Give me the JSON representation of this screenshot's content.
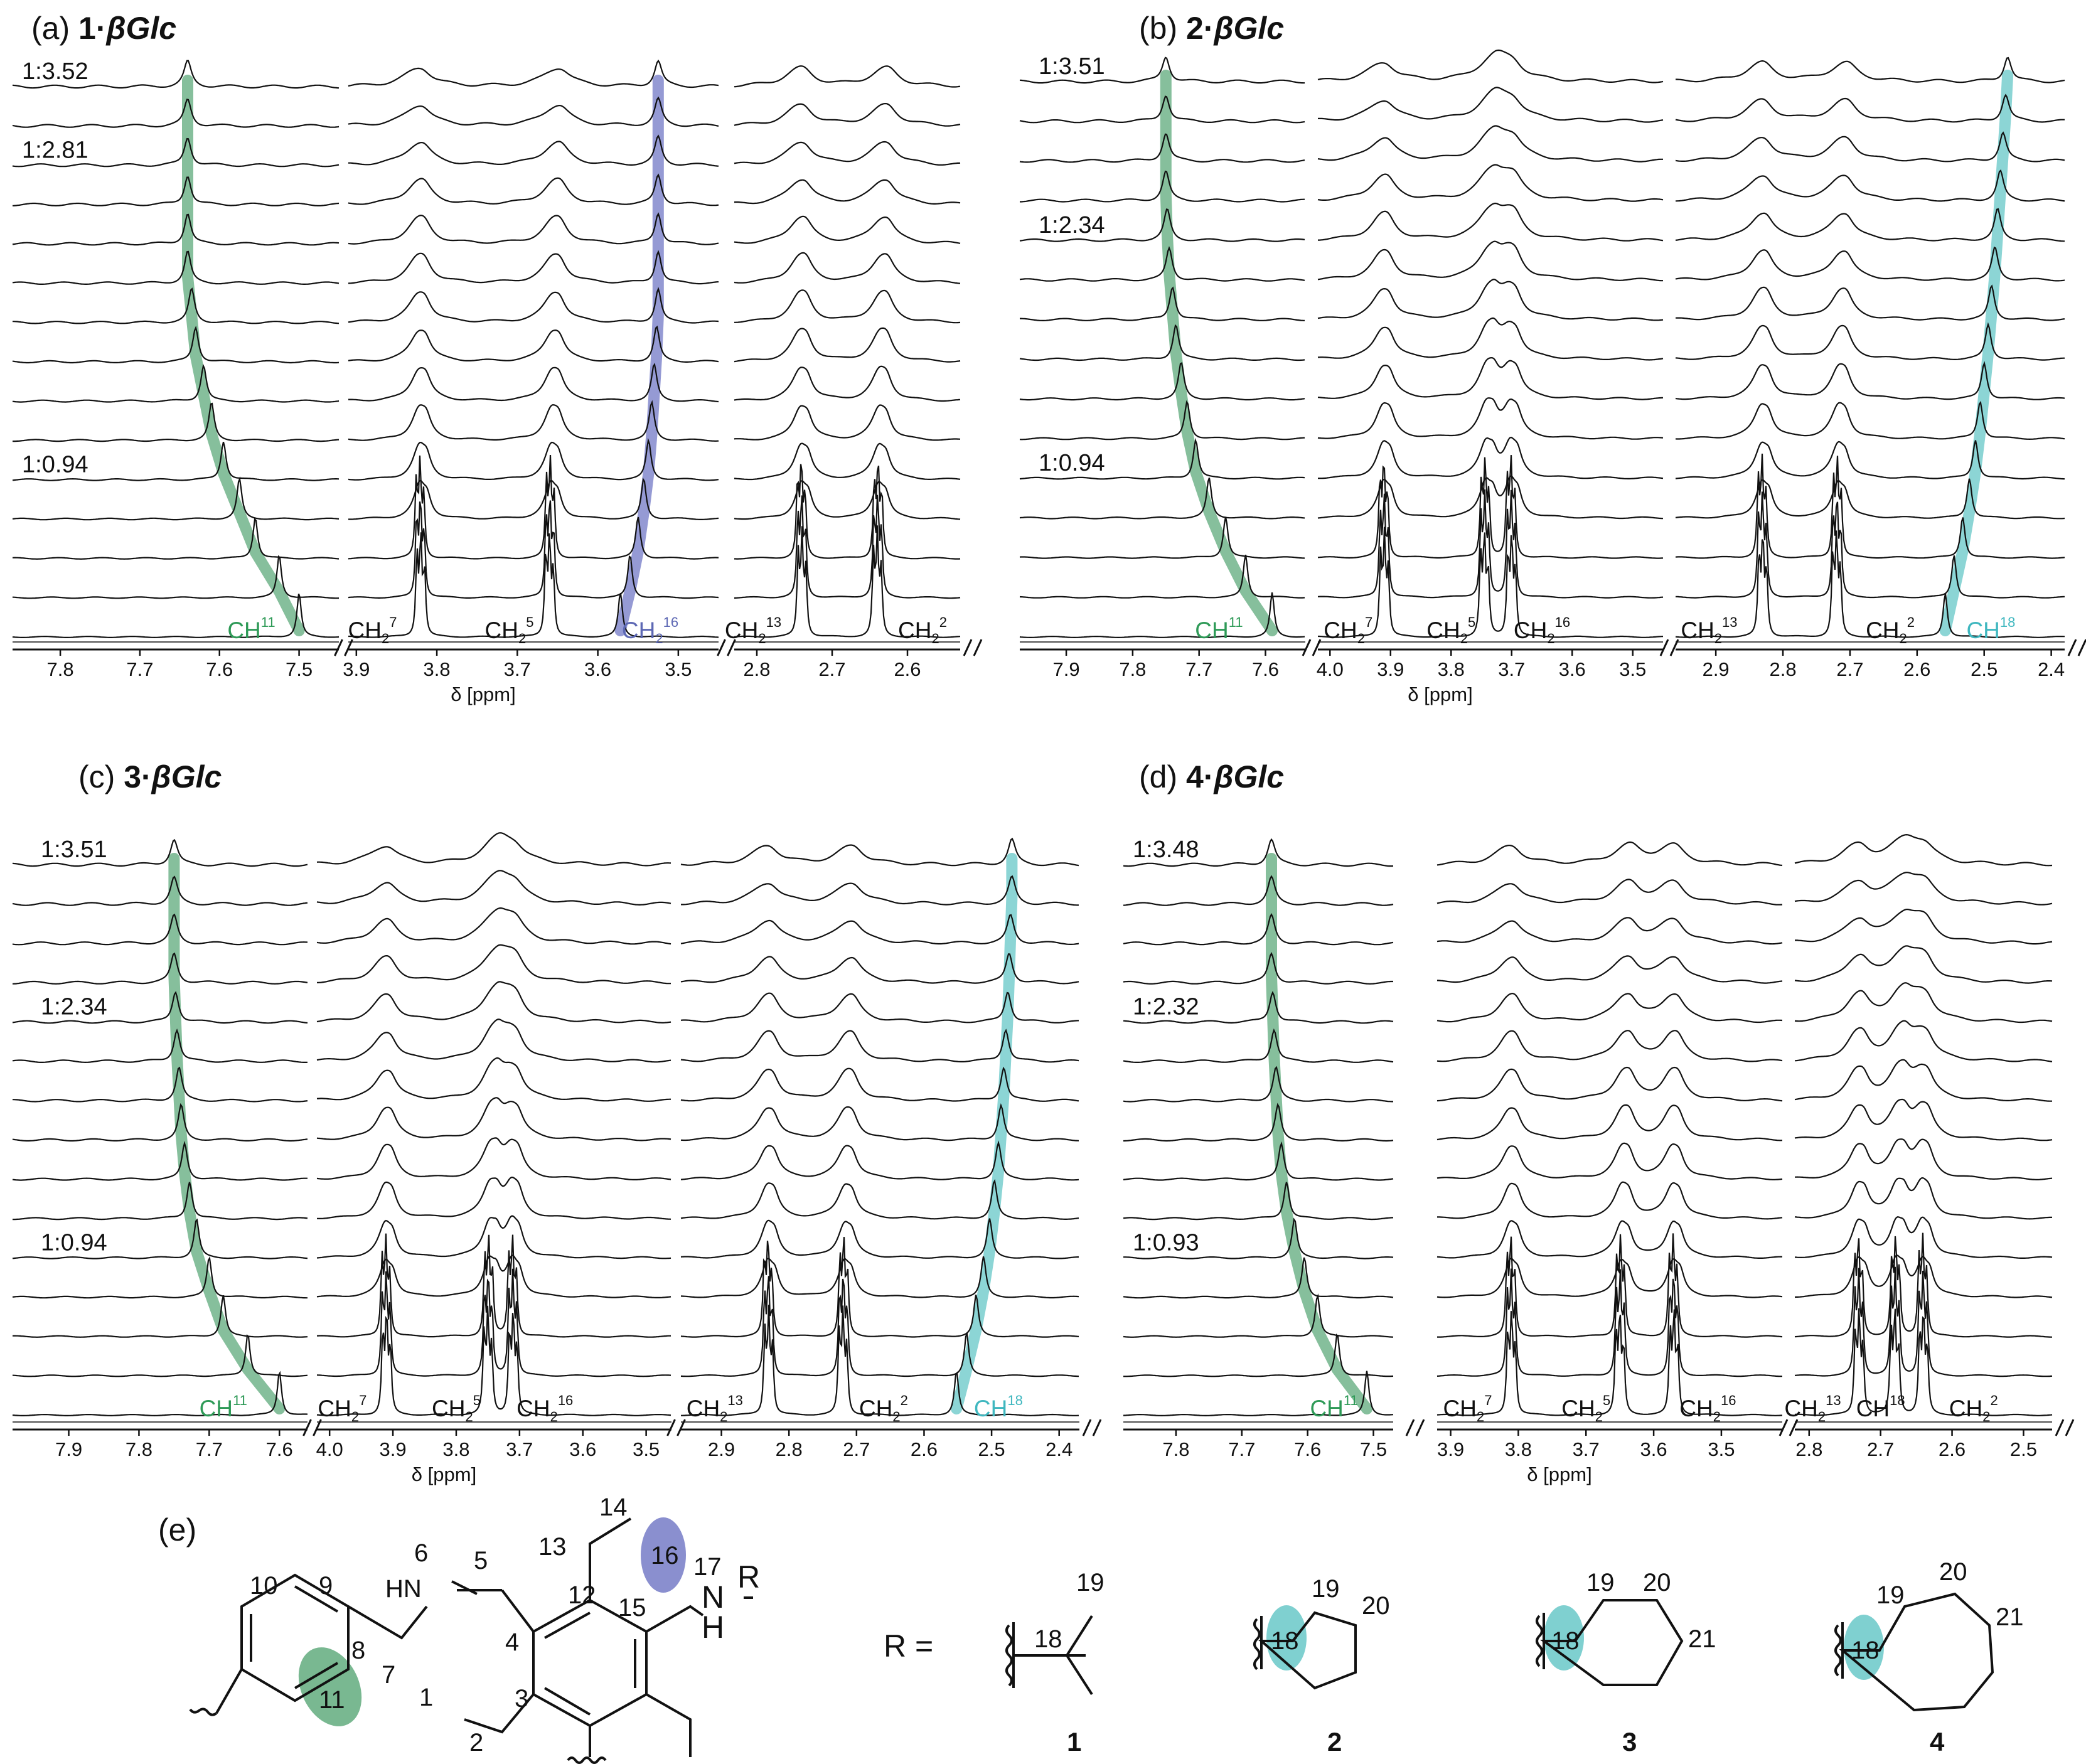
{
  "colors": {
    "spectrum": "#111111",
    "highlight_ch11": "#79b891",
    "highlight_ch16": "#8a8fcf",
    "highlight_ch18": "#7fd0d0",
    "label_ch11": "#2e9a57",
    "label_ch16": "#5d68b4",
    "label_ch18": "#3fb7bf"
  },
  "chart_data": [
    {
      "type": "line",
      "panel": "(a)",
      "title_prefix": "(a) ",
      "title_compound": "1",
      "title_dot": "·",
      "title_guest": "βGlc",
      "xlabel": "δ [ppm]",
      "n_traces": 15,
      "ratio_labels": [
        {
          "text": "1:3.52",
          "trace": 0
        },
        {
          "text": "1:2.81",
          "trace": 2
        },
        {
          "text": "1:0.94",
          "trace": 10
        }
      ],
      "segments": [
        {
          "xlim": [
            7.86,
            7.45
          ],
          "ticks": [
            "7.8",
            "7.7",
            "7.6",
            "7.5"
          ],
          "tick_values": [
            7.8,
            7.7,
            7.6,
            7.5
          ]
        },
        {
          "xlim": [
            3.91,
            3.45
          ],
          "ticks": [
            "3.9",
            "3.8",
            "3.7",
            "3.6",
            "3.5"
          ],
          "tick_values": [
            3.9,
            3.8,
            3.7,
            3.6,
            3.5
          ]
        },
        {
          "xlim": [
            2.83,
            2.53
          ],
          "ticks": [
            "2.8",
            "2.7",
            "2.6"
          ],
          "tick_values": [
            2.8,
            2.7,
            2.6
          ]
        }
      ],
      "highlights": [
        {
          "label": "CH",
          "sup": "11",
          "series": "ch11",
          "segment": 0,
          "shifts_ppm": [
            7.64,
            7.64,
            7.64,
            7.64,
            7.64,
            7.64,
            7.635,
            7.63,
            7.62,
            7.61,
            7.595,
            7.575,
            7.555,
            7.525,
            7.5
          ]
        },
        {
          "label": "CH",
          "sub": "2",
          "sup": "16",
          "series": "ch16",
          "segment": 1,
          "shifts_ppm": [
            3.525,
            3.525,
            3.525,
            3.525,
            3.525,
            3.525,
            3.525,
            3.527,
            3.53,
            3.533,
            3.537,
            3.543,
            3.55,
            3.56,
            3.572
          ]
        }
      ],
      "static_peaks": [
        {
          "label": "CH",
          "sub": "2",
          "sup": "7",
          "segment": 1,
          "ppm": 3.82
        },
        {
          "label": "CH",
          "sub": "2",
          "sup": "5",
          "segment": 1,
          "ppm": 3.66
        },
        {
          "label": "CH",
          "sub": "2",
          "sup": "13",
          "segment": 2,
          "ppm": 2.74
        },
        {
          "label": "CH",
          "sub": "2",
          "sup": "2",
          "segment": 2,
          "ppm": 2.64
        }
      ],
      "peak_labels": [
        {
          "text": "CH",
          "sub": "",
          "sup": "11",
          "series": "ch11",
          "segment": 0,
          "ppm": 7.56
        },
        {
          "text": "CH",
          "sub": "2",
          "sup": "7",
          "segment": 1,
          "ppm": 3.88
        },
        {
          "text": "CH",
          "sub": "2",
          "sup": "5",
          "segment": 1,
          "ppm": 3.71
        },
        {
          "text": "CH",
          "sub": "2",
          "sup": "16",
          "series": "ch16",
          "segment": 1,
          "ppm": 3.535
        },
        {
          "text": "CH",
          "sub": "2",
          "sup": "13",
          "segment": 2,
          "ppm": 2.805
        },
        {
          "text": "CH",
          "sub": "2",
          "sup": "2",
          "segment": 2,
          "ppm": 2.58
        }
      ]
    },
    {
      "type": "line",
      "panel": "(b)",
      "title_prefix": "(b) ",
      "title_compound": "2",
      "title_dot": "·",
      "title_guest": "βGlc",
      "xlabel": "δ [ppm]",
      "n_traces": 15,
      "ratio_labels": [
        {
          "text": "1:3.51",
          "trace": 0
        },
        {
          "text": "1:2.34",
          "trace": 4
        },
        {
          "text": "1:0.94",
          "trace": 10
        }
      ],
      "segments": [
        {
          "xlim": [
            7.97,
            7.54
          ],
          "ticks": [
            "7.9",
            "7.8",
            "7.7",
            "7.6"
          ],
          "tick_values": [
            7.9,
            7.8,
            7.7,
            7.6
          ]
        },
        {
          "xlim": [
            4.02,
            3.45
          ],
          "ticks": [
            "4.0",
            "3.9",
            "3.8",
            "3.7",
            "3.6",
            "3.5"
          ],
          "tick_values": [
            4.0,
            3.9,
            3.8,
            3.7,
            3.6,
            3.5
          ]
        },
        {
          "xlim": [
            2.96,
            2.38
          ],
          "ticks": [
            "2.9",
            "2.8",
            "2.7",
            "2.6",
            "2.5",
            "2.4"
          ],
          "tick_values": [
            2.9,
            2.8,
            2.7,
            2.6,
            2.5,
            2.4
          ]
        }
      ],
      "highlights": [
        {
          "label": "CH",
          "sup": "11",
          "series": "ch11",
          "segment": 0,
          "shifts_ppm": [
            7.75,
            7.75,
            7.75,
            7.75,
            7.748,
            7.745,
            7.74,
            7.735,
            7.727,
            7.718,
            7.705,
            7.685,
            7.66,
            7.63,
            7.59
          ]
        },
        {
          "label": "CH",
          "sup": "18",
          "series": "ch18",
          "segment": 2,
          "shifts_ppm": [
            2.465,
            2.468,
            2.472,
            2.476,
            2.48,
            2.484,
            2.489,
            2.494,
            2.5,
            2.506,
            2.513,
            2.522,
            2.532,
            2.545,
            2.558
          ]
        }
      ],
      "static_peaks": [
        {
          "label": "CH",
          "sub": "2",
          "sup": "7",
          "segment": 1,
          "ppm": 3.91
        },
        {
          "label": "CH",
          "sub": "2",
          "sup": "5",
          "segment": 1,
          "ppm": 3.745
        },
        {
          "label": "CH",
          "sub": "2",
          "sup": "16",
          "segment": 1,
          "ppm": 3.7
        },
        {
          "label": "CH",
          "sub": "2",
          "sup": "13",
          "segment": 2,
          "ppm": 2.83
        },
        {
          "label": "CH",
          "sub": "2",
          "sup": "2",
          "segment": 2,
          "ppm": 2.72
        }
      ],
      "peak_labels": [
        {
          "text": "CH",
          "sub": "",
          "sup": "11",
          "series": "ch11",
          "segment": 0,
          "ppm": 7.67
        },
        {
          "text": "CH",
          "sub": "2",
          "sup": "7",
          "segment": 1,
          "ppm": 3.97
        },
        {
          "text": "CH",
          "sub": "2",
          "sup": "5",
          "segment": 1,
          "ppm": 3.8
        },
        {
          "text": "CH",
          "sub": "2",
          "sup": "16",
          "segment": 1,
          "ppm": 3.65
        },
        {
          "text": "CH",
          "sub": "2",
          "sup": "13",
          "segment": 2,
          "ppm": 2.91
        },
        {
          "text": "CH",
          "sub": "2",
          "sup": "2",
          "segment": 2,
          "ppm": 2.64
        },
        {
          "text": "CH",
          "sub": "",
          "sup": "18",
          "series": "ch18",
          "segment": 2,
          "ppm": 2.49
        }
      ]
    },
    {
      "type": "line",
      "panel": "(c)",
      "title_prefix": "(c) ",
      "title_compound": "3",
      "title_dot": "·",
      "title_guest": "βGlc",
      "xlabel": "δ [ppm]",
      "n_traces": 15,
      "ratio_labels": [
        {
          "text": "1:3.51",
          "trace": 0
        },
        {
          "text": "1:2.34",
          "trace": 4
        },
        {
          "text": "1:0.94",
          "trace": 10
        }
      ],
      "segments": [
        {
          "xlim": [
            7.98,
            7.56
          ],
          "ticks": [
            "7.9",
            "7.8",
            "7.7",
            "7.6"
          ],
          "tick_values": [
            7.9,
            7.8,
            7.7,
            7.6
          ]
        },
        {
          "xlim": [
            4.02,
            3.46
          ],
          "ticks": [
            "4.0",
            "3.9",
            "3.8",
            "3.7",
            "3.6",
            "3.5"
          ],
          "tick_values": [
            4.0,
            3.9,
            3.8,
            3.7,
            3.6,
            3.5
          ]
        },
        {
          "xlim": [
            2.96,
            2.37
          ],
          "ticks": [
            "2.9",
            "2.8",
            "2.7",
            "2.6",
            "2.5",
            "2.4"
          ],
          "tick_values": [
            2.9,
            2.8,
            2.7,
            2.6,
            2.5,
            2.4
          ]
        }
      ],
      "highlights": [
        {
          "label": "CH",
          "sup": "11",
          "series": "ch11",
          "segment": 0,
          "shifts_ppm": [
            7.75,
            7.75,
            7.75,
            7.75,
            7.748,
            7.746,
            7.743,
            7.74,
            7.735,
            7.728,
            7.718,
            7.7,
            7.68,
            7.645,
            7.6
          ]
        },
        {
          "label": "CH",
          "sup": "18",
          "series": "ch18",
          "segment": 2,
          "shifts_ppm": [
            2.47,
            2.47,
            2.472,
            2.474,
            2.476,
            2.479,
            2.482,
            2.486,
            2.49,
            2.496,
            2.503,
            2.512,
            2.523,
            2.537,
            2.552
          ]
        }
      ],
      "static_peaks": [
        {
          "label": "CH",
          "sub": "2",
          "sup": "7",
          "segment": 1,
          "ppm": 3.91
        },
        {
          "label": "CH",
          "sub": "2",
          "sup": "5",
          "segment": 1,
          "ppm": 3.75
        },
        {
          "label": "CH",
          "sub": "2",
          "sup": "16",
          "segment": 1,
          "ppm": 3.71
        },
        {
          "label": "CH",
          "sub": "2",
          "sup": "13",
          "segment": 2,
          "ppm": 2.83
        },
        {
          "label": "CH",
          "sub": "2",
          "sup": "2",
          "segment": 2,
          "ppm": 2.72
        }
      ],
      "peak_labels": [
        {
          "text": "CH",
          "sub": "",
          "sup": "11",
          "series": "ch11",
          "segment": 0,
          "ppm": 7.68
        },
        {
          "text": "CH",
          "sub": "2",
          "sup": "7",
          "segment": 1,
          "ppm": 3.98
        },
        {
          "text": "CH",
          "sub": "2",
          "sup": "5",
          "segment": 1,
          "ppm": 3.8
        },
        {
          "text": "CH",
          "sub": "2",
          "sup": "16",
          "segment": 1,
          "ppm": 3.66
        },
        {
          "text": "CH",
          "sub": "2",
          "sup": "13",
          "segment": 2,
          "ppm": 2.91
        },
        {
          "text": "CH",
          "sub": "2",
          "sup": "2",
          "segment": 2,
          "ppm": 2.66
        },
        {
          "text": "CH",
          "sub": "",
          "sup": "18",
          "series": "ch18",
          "segment": 2,
          "ppm": 2.49
        }
      ]
    },
    {
      "type": "line",
      "panel": "(d)",
      "title_prefix": "(d) ",
      "title_compound": "4",
      "title_dot": "·",
      "title_guest": "βGlc",
      "xlabel": "δ [ppm]",
      "n_traces": 15,
      "ratio_labels": [
        {
          "text": "1:3.48",
          "trace": 0
        },
        {
          "text": "1:2.32",
          "trace": 4
        },
        {
          "text": "1:0.93",
          "trace": 10
        }
      ],
      "segments": [
        {
          "xlim": [
            7.88,
            7.47
          ],
          "ticks": [
            "7.8",
            "7.7",
            "7.6",
            "7.5"
          ],
          "tick_values": [
            7.8,
            7.7,
            7.6,
            7.5
          ]
        },
        {
          "xlim": [
            3.92,
            3.41
          ],
          "ticks": [
            "3.9",
            "3.8",
            "3.7",
            "3.6",
            "3.5"
          ],
          "tick_values": [
            3.9,
            3.8,
            3.7,
            3.6,
            3.5
          ]
        },
        {
          "xlim": [
            2.82,
            2.46
          ],
          "ticks": [
            "2.8",
            "2.7",
            "2.6",
            "2.5"
          ],
          "tick_values": [
            2.8,
            2.7,
            2.6,
            2.5
          ]
        }
      ],
      "highlights": [
        {
          "label": "CH",
          "sup": "11",
          "series": "ch11",
          "segment": 0,
          "shifts_ppm": [
            7.655,
            7.655,
            7.655,
            7.655,
            7.653,
            7.651,
            7.648,
            7.645,
            7.64,
            7.632,
            7.62,
            7.605,
            7.585,
            7.555,
            7.51
          ]
        }
      ],
      "static_peaks": [
        {
          "label": "CH",
          "sub": "2",
          "sup": "7",
          "segment": 1,
          "ppm": 3.81
        },
        {
          "label": "CH",
          "sub": "2",
          "sup": "5",
          "segment": 1,
          "ppm": 3.65
        },
        {
          "label": "CH",
          "sub": "2",
          "sup": "16",
          "segment": 1,
          "ppm": 3.57
        },
        {
          "label": "CH",
          "sub": "2",
          "sup": "13",
          "segment": 2,
          "ppm": 2.73
        },
        {
          "label": "CH",
          "sup": "18",
          "segment": 2,
          "ppm": 2.68
        },
        {
          "label": "CH",
          "sub": "2",
          "sup": "2",
          "segment": 2,
          "ppm": 2.64
        }
      ],
      "peak_labels": [
        {
          "text": "CH",
          "sub": "",
          "sup": "11",
          "series": "ch11",
          "segment": 0,
          "ppm": 7.56
        },
        {
          "text": "CH",
          "sub": "2",
          "sup": "7",
          "segment": 1,
          "ppm": 3.875
        },
        {
          "text": "CH",
          "sub": "2",
          "sup": "5",
          "segment": 1,
          "ppm": 3.7
        },
        {
          "text": "CH",
          "sub": "2",
          "sup": "16",
          "segment": 1,
          "ppm": 3.52
        },
        {
          "text": "CH",
          "sub": "2",
          "sup": "13",
          "segment": 2,
          "ppm": 2.795
        },
        {
          "text": "CH",
          "sub": "",
          "sup": "18",
          "segment": 2,
          "ppm": 2.7
        },
        {
          "text": "CH",
          "sub": "2",
          "sup": "2",
          "segment": 2,
          "ppm": 2.57
        }
      ]
    }
  ],
  "structure_panel": {
    "label": "(e)",
    "atom_numbers": [
      "1",
      "2",
      "3",
      "4",
      "5",
      "6",
      "7",
      "8",
      "9",
      "10",
      "11",
      "12",
      "13",
      "14",
      "15",
      "16",
      "17"
    ],
    "amine_6": "HN",
    "amine_17": "N",
    "amine_17_h": "H",
    "r_group": "R",
    "r_equals": "R =",
    "highlighted_atoms": {
      "11": "ch11",
      "16": "ch16"
    },
    "substituents": [
      {
        "compound": "1",
        "name": "tert-butyl",
        "atoms": [
          "18",
          "19"
        ]
      },
      {
        "compound": "2",
        "name": "cyclopentyl",
        "atoms": [
          "18",
          "19",
          "20"
        ]
      },
      {
        "compound": "3",
        "name": "cyclohexyl",
        "atoms": [
          "18",
          "19",
          "20",
          "21"
        ]
      },
      {
        "compound": "4",
        "name": "cycloheptyl",
        "atoms": [
          "18",
          "19",
          "20",
          "21"
        ]
      }
    ]
  }
}
